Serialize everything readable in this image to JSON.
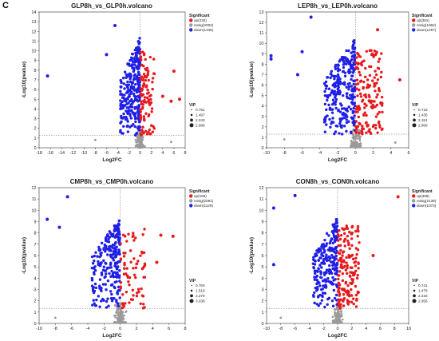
{
  "panel_label": "C",
  "colors": {
    "up": "#e8191c",
    "nosig": "#9a9a9a",
    "down": "#1f1fe6",
    "axis": "#333333",
    "threshold": "#666666"
  },
  "chart_data": [
    {
      "type": "scatter",
      "title": "GLP8h_vs_GLP0h.volcano",
      "xlabel": "Log2FC",
      "ylabel": "-Log10(pvalue)",
      "xlim": [
        -18,
        8
      ],
      "ylim": [
        0,
        14
      ],
      "xticks": [
        "-18",
        "-16",
        "-14",
        "-12",
        "-10",
        "-8",
        "-6",
        "-4",
        "-2",
        "0",
        "2",
        "4",
        "6",
        "8"
      ],
      "yticks": [
        "0",
        "1",
        "2",
        "3",
        "4",
        "5",
        "6",
        "7",
        "8",
        "9",
        "10",
        "11",
        "12",
        "13",
        "14"
      ],
      "threshold_y": 1.3,
      "threshold_x": 0,
      "legend": {
        "title": "Significant",
        "items": [
          "up(232)",
          "nosig(2003)",
          "down(1345)"
        ],
        "counts": [
          232,
          2003,
          1345
        ]
      },
      "vip": {
        "title": "VIP",
        "values": [
          "0.751",
          "1.497",
          "2.243",
          "2.989"
        ]
      },
      "x_spread": {
        "down_min": -3.5,
        "up_max": 2.5
      },
      "highlights": [
        {
          "x": -16.5,
          "y": 7.4,
          "group": "down"
        },
        {
          "x": -6,
          "y": 9.6,
          "group": "down"
        },
        {
          "x": -4.5,
          "y": 12.6,
          "group": "down"
        },
        {
          "x": 6,
          "y": 7.9,
          "group": "up"
        },
        {
          "x": 7,
          "y": 5.0,
          "group": "up"
        },
        {
          "x": 5.5,
          "y": 4.8,
          "group": "up"
        },
        {
          "x": 4,
          "y": 5.3,
          "group": "up"
        },
        {
          "x": -8,
          "y": 0.8,
          "group": "nosig"
        },
        {
          "x": 5.5,
          "y": 0.6,
          "group": "nosig"
        }
      ]
    },
    {
      "type": "scatter",
      "title": "LEP8h_vs_LEP0h.volcano",
      "xlabel": "Log2FC",
      "ylabel": "-Log10(pvalue)",
      "xlim": [
        -10,
        6
      ],
      "ylim": [
        0,
        13
      ],
      "xticks": [
        "-10",
        "-8",
        "-6",
        "-4",
        "-2",
        "0",
        "2",
        "4",
        "6"
      ],
      "yticks": [
        "0",
        "1",
        "2",
        "3",
        "4",
        "5",
        "6",
        "7",
        "8",
        "9",
        "10",
        "11",
        "12",
        "13"
      ],
      "threshold_y": 1.3,
      "threshold_x": 0,
      "legend": {
        "title": "Significant",
        "items": [
          "up(361)",
          "nosig(1962)",
          "down(1257)"
        ],
        "counts": [
          361,
          1962,
          1257
        ]
      },
      "vip": {
        "title": "VIP",
        "values": [
          "0.718",
          "1.435",
          "2.151",
          "2.868"
        ]
      },
      "x_spread": {
        "down_min": -3.5,
        "up_max": 3
      },
      "highlights": [
        {
          "x": -9.5,
          "y": 8.5,
          "group": "down"
        },
        {
          "x": -9.5,
          "y": 8.8,
          "group": "down"
        },
        {
          "x": -6,
          "y": 9.2,
          "group": "down"
        },
        {
          "x": -5,
          "y": 12.5,
          "group": "down"
        },
        {
          "x": -6.5,
          "y": 7.0,
          "group": "down"
        },
        {
          "x": 2.5,
          "y": 11.3,
          "group": "up"
        },
        {
          "x": 5,
          "y": 6.5,
          "group": "up"
        },
        {
          "x": -8,
          "y": 0.8,
          "group": "nosig"
        },
        {
          "x": 4.5,
          "y": 0.5,
          "group": "nosig"
        }
      ]
    },
    {
      "type": "scatter",
      "title": "CMP8h_vs_CMP0h.volcano",
      "xlabel": "Log2FC",
      "ylabel": "-Log10(pvalue)",
      "xlim": [
        -10,
        8
      ],
      "ylim": [
        0,
        12
      ],
      "xticks": [
        "-10",
        "-8",
        "-6",
        "-4",
        "-2",
        "0",
        "2",
        "4",
        "6",
        "8"
      ],
      "yticks": [
        "0",
        "1",
        "2",
        "3",
        "4",
        "5",
        "6",
        "7",
        "8",
        "9",
        "10",
        "11",
        "12"
      ],
      "threshold_y": 1.3,
      "threshold_x": 0,
      "legend": {
        "title": "Significant",
        "items": [
          "up(165)",
          "nosig(2091)",
          "down(1129)"
        ],
        "counts": [
          165,
          2091,
          1129
        ]
      },
      "vip": {
        "title": "VIP",
        "values": [
          "0.760",
          "1.519",
          "2.279",
          "3.038"
        ]
      },
      "x_spread": {
        "down_min": -3.5,
        "up_max": 3
      },
      "highlights": [
        {
          "x": -9,
          "y": 9.2,
          "group": "down"
        },
        {
          "x": -6.5,
          "y": 11.2,
          "group": "down"
        },
        {
          "x": -7.5,
          "y": 8.5,
          "group": "down"
        },
        {
          "x": 6.5,
          "y": 7.7,
          "group": "up"
        },
        {
          "x": 5,
          "y": 7.8,
          "group": "up"
        },
        {
          "x": 4.5,
          "y": 5.4,
          "group": "up"
        },
        {
          "x": -8,
          "y": 0.5,
          "group": "nosig"
        }
      ]
    },
    {
      "type": "scatter",
      "title": "CON8h_vs_CON0h.volcano",
      "xlabel": "Log2FC",
      "ylabel": "-Log10(pvalue)",
      "xlim": [
        -10,
        10
      ],
      "ylim": [
        0,
        12
      ],
      "xticks": [
        "-10",
        "-8",
        "-6",
        "-4",
        "-2",
        "0",
        "2",
        "4",
        "6",
        "8",
        "10"
      ],
      "yticks": [
        "0",
        "1",
        "2",
        "3",
        "4",
        "5",
        "6",
        "7",
        "8",
        "9",
        "10",
        "11",
        "12"
      ],
      "threshold_y": 1.3,
      "threshold_x": 0,
      "legend": {
        "title": "Significant",
        "items": [
          "up(368)",
          "nosig(2139)",
          "down(1073)"
        ],
        "counts": [
          368,
          2139,
          1073
        ]
      },
      "vip": {
        "title": "VIP",
        "values": [
          "0.741",
          "1.479",
          "2.218",
          "2.956"
        ]
      },
      "x_spread": {
        "down_min": -3.5,
        "up_max": 3
      },
      "highlights": [
        {
          "x": 8.5,
          "y": 11.2,
          "group": "up"
        },
        {
          "x": 5,
          "y": 6.0,
          "group": "up"
        },
        {
          "x": -9,
          "y": 10.2,
          "group": "down"
        },
        {
          "x": -6,
          "y": 11.3,
          "group": "down"
        },
        {
          "x": -9,
          "y": 5.2,
          "group": "down"
        },
        {
          "x": -8,
          "y": 0.5,
          "group": "nosig"
        }
      ]
    }
  ]
}
